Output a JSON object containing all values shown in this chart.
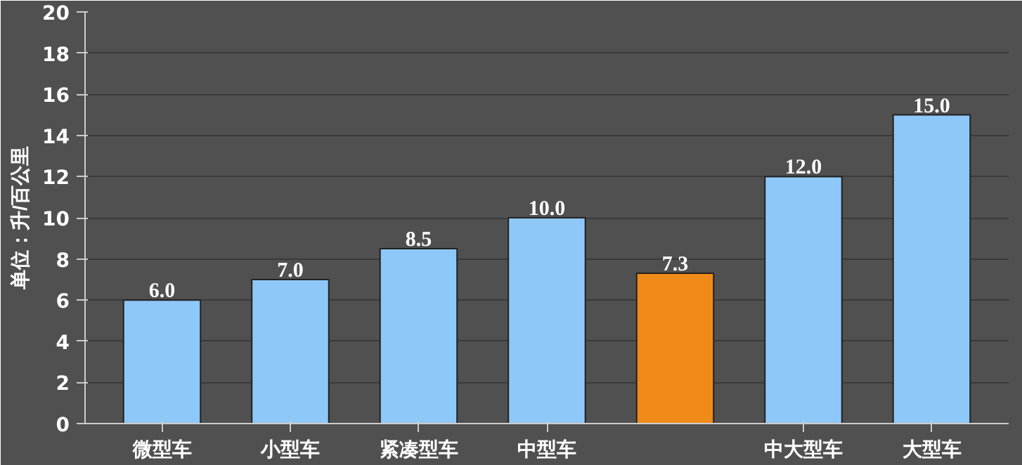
{
  "chart_data": {
    "type": "bar",
    "ylabel": "单位：升/百公里",
    "categories": [
      "微型车",
      "小型车",
      "紧凑型车",
      "中型车",
      null,
      "中大型车",
      "大型车"
    ],
    "values": [
      6.0,
      7.0,
      8.5,
      10.0,
      7.3,
      12.0,
      15.0
    ],
    "colors": [
      "#8ec8f8",
      "#8ec8f8",
      "#8ec8f8",
      "#8ec8f8",
      "#f08a18",
      "#8ec8f8",
      "#8ec8f8"
    ],
    "value_labels": [
      "6.0",
      "7.0",
      "8.5",
      "10.0",
      "7.3",
      "12.0",
      "15.0"
    ],
    "ylim": [
      0,
      20
    ],
    "yticks": [
      0,
      2,
      4,
      6,
      8,
      10,
      12,
      14,
      16,
      18,
      20
    ],
    "grid": "y"
  }
}
